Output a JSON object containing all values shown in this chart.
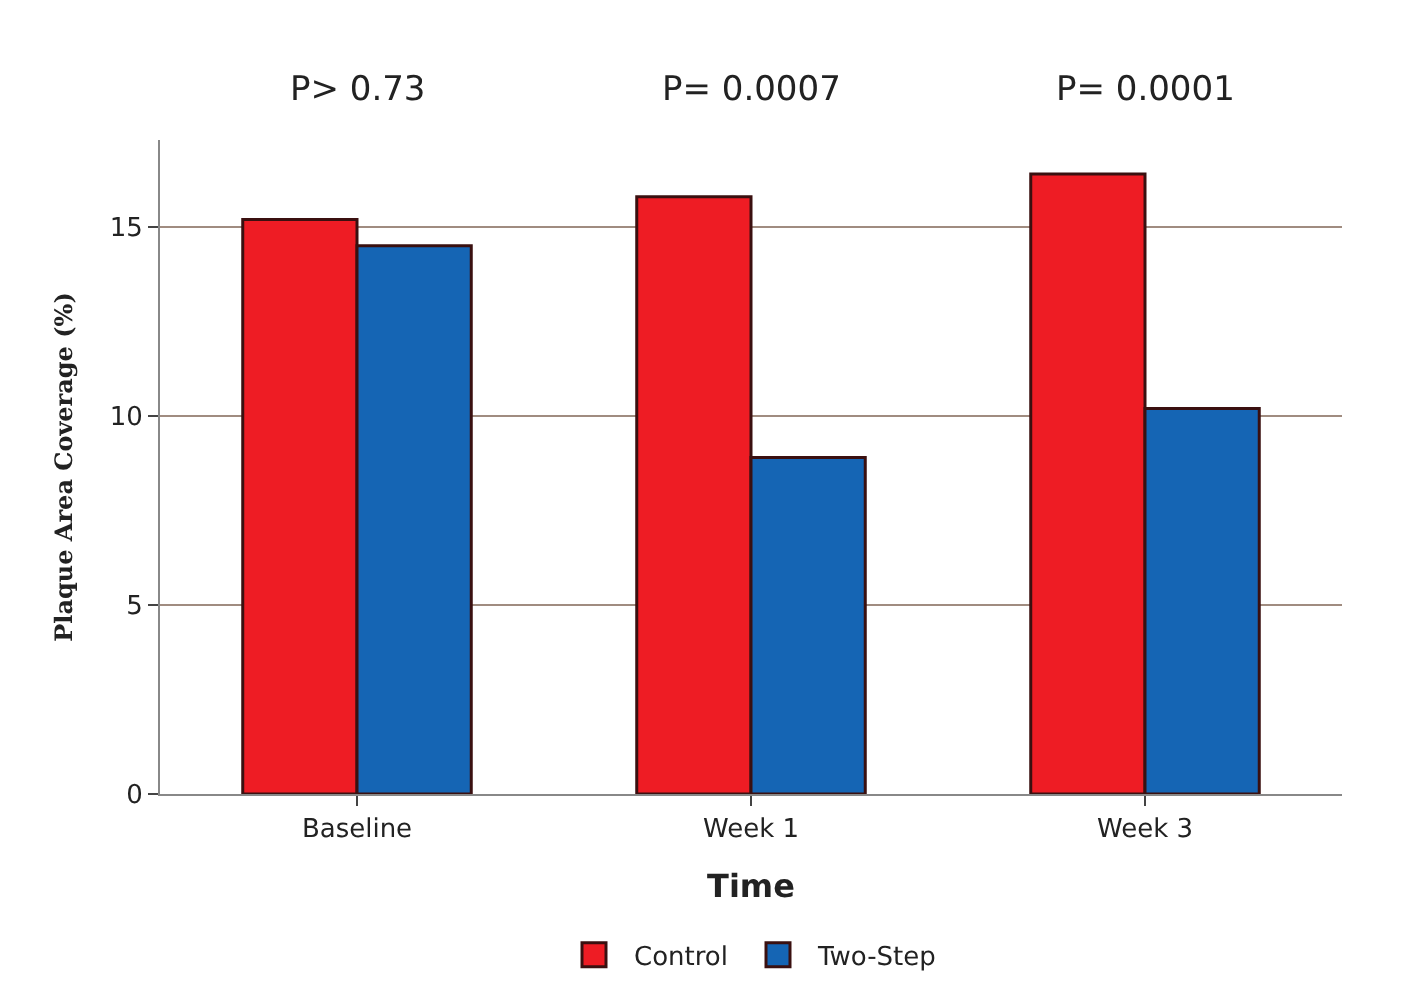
{
  "chart_data": {
    "type": "bar",
    "xlabel": "Time",
    "ylabel": "Plaque Area Coverage (%)",
    "categories": [
      "Baseline",
      "Week 1",
      "Week 3"
    ],
    "series": [
      {
        "name": "Control",
        "color": "#ee1c24",
        "values": [
          15.2,
          15.8,
          16.4
        ]
      },
      {
        "name": "Two-Step",
        "color": "#1565b4",
        "values": [
          14.5,
          8.9,
          10.2
        ]
      }
    ],
    "ylim": [
      0,
      17.3
    ],
    "yticks": [
      0,
      5,
      10,
      15
    ],
    "grid": "y",
    "legend": "bottom",
    "annotations": [
      "P> 0.73",
      "P= 0.0007",
      "P= 0.0001"
    ]
  }
}
